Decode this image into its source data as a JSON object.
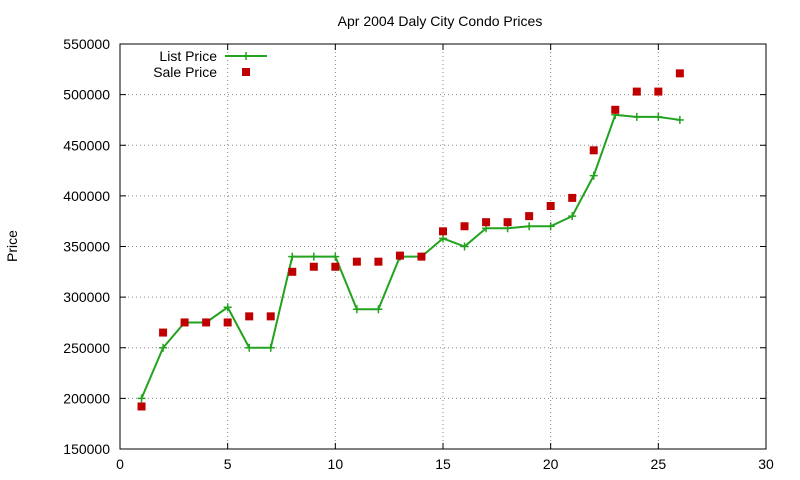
{
  "chart_data": {
    "type": "line",
    "title": "Apr 2004 Daly City Condo Prices",
    "xlabel": "",
    "ylabel": "Price",
    "xlim": [
      0,
      30
    ],
    "ylim": [
      150000,
      550000
    ],
    "xticks": [
      0,
      5,
      10,
      15,
      20,
      25,
      30
    ],
    "yticks": [
      150000,
      200000,
      250000,
      300000,
      350000,
      400000,
      450000,
      500000,
      550000
    ],
    "grid": true,
    "legend_position": "top-left",
    "series": [
      {
        "name": "List Price",
        "style": "line-points",
        "color": "#22a21e",
        "x": [
          1,
          2,
          3,
          4,
          5,
          6,
          7,
          8,
          9,
          10,
          11,
          12,
          13,
          14,
          15,
          16,
          17,
          18,
          19,
          20,
          21,
          22,
          23,
          24,
          25,
          26
        ],
        "y": [
          200000,
          250000,
          275000,
          275000,
          290000,
          250000,
          250000,
          340000,
          340000,
          340000,
          288000,
          288000,
          340000,
          340000,
          358000,
          350000,
          368000,
          368000,
          370000,
          370000,
          380000,
          420000,
          480000,
          478000,
          478000,
          475000
        ]
      },
      {
        "name": "Sale Price",
        "style": "points",
        "color": "#c00000",
        "x": [
          1,
          2,
          3,
          4,
          5,
          6,
          7,
          8,
          9,
          10,
          11,
          12,
          13,
          14,
          15,
          16,
          17,
          18,
          19,
          20,
          21,
          22,
          23,
          24,
          25,
          26
        ],
        "y": [
          192000,
          265000,
          275000,
          275000,
          275000,
          281000,
          281000,
          325000,
          330000,
          330000,
          335000,
          335000,
          341000,
          340000,
          365000,
          370000,
          374000,
          374000,
          380000,
          390000,
          398000,
          445000,
          485000,
          503000,
          503000,
          521000
        ]
      }
    ]
  }
}
